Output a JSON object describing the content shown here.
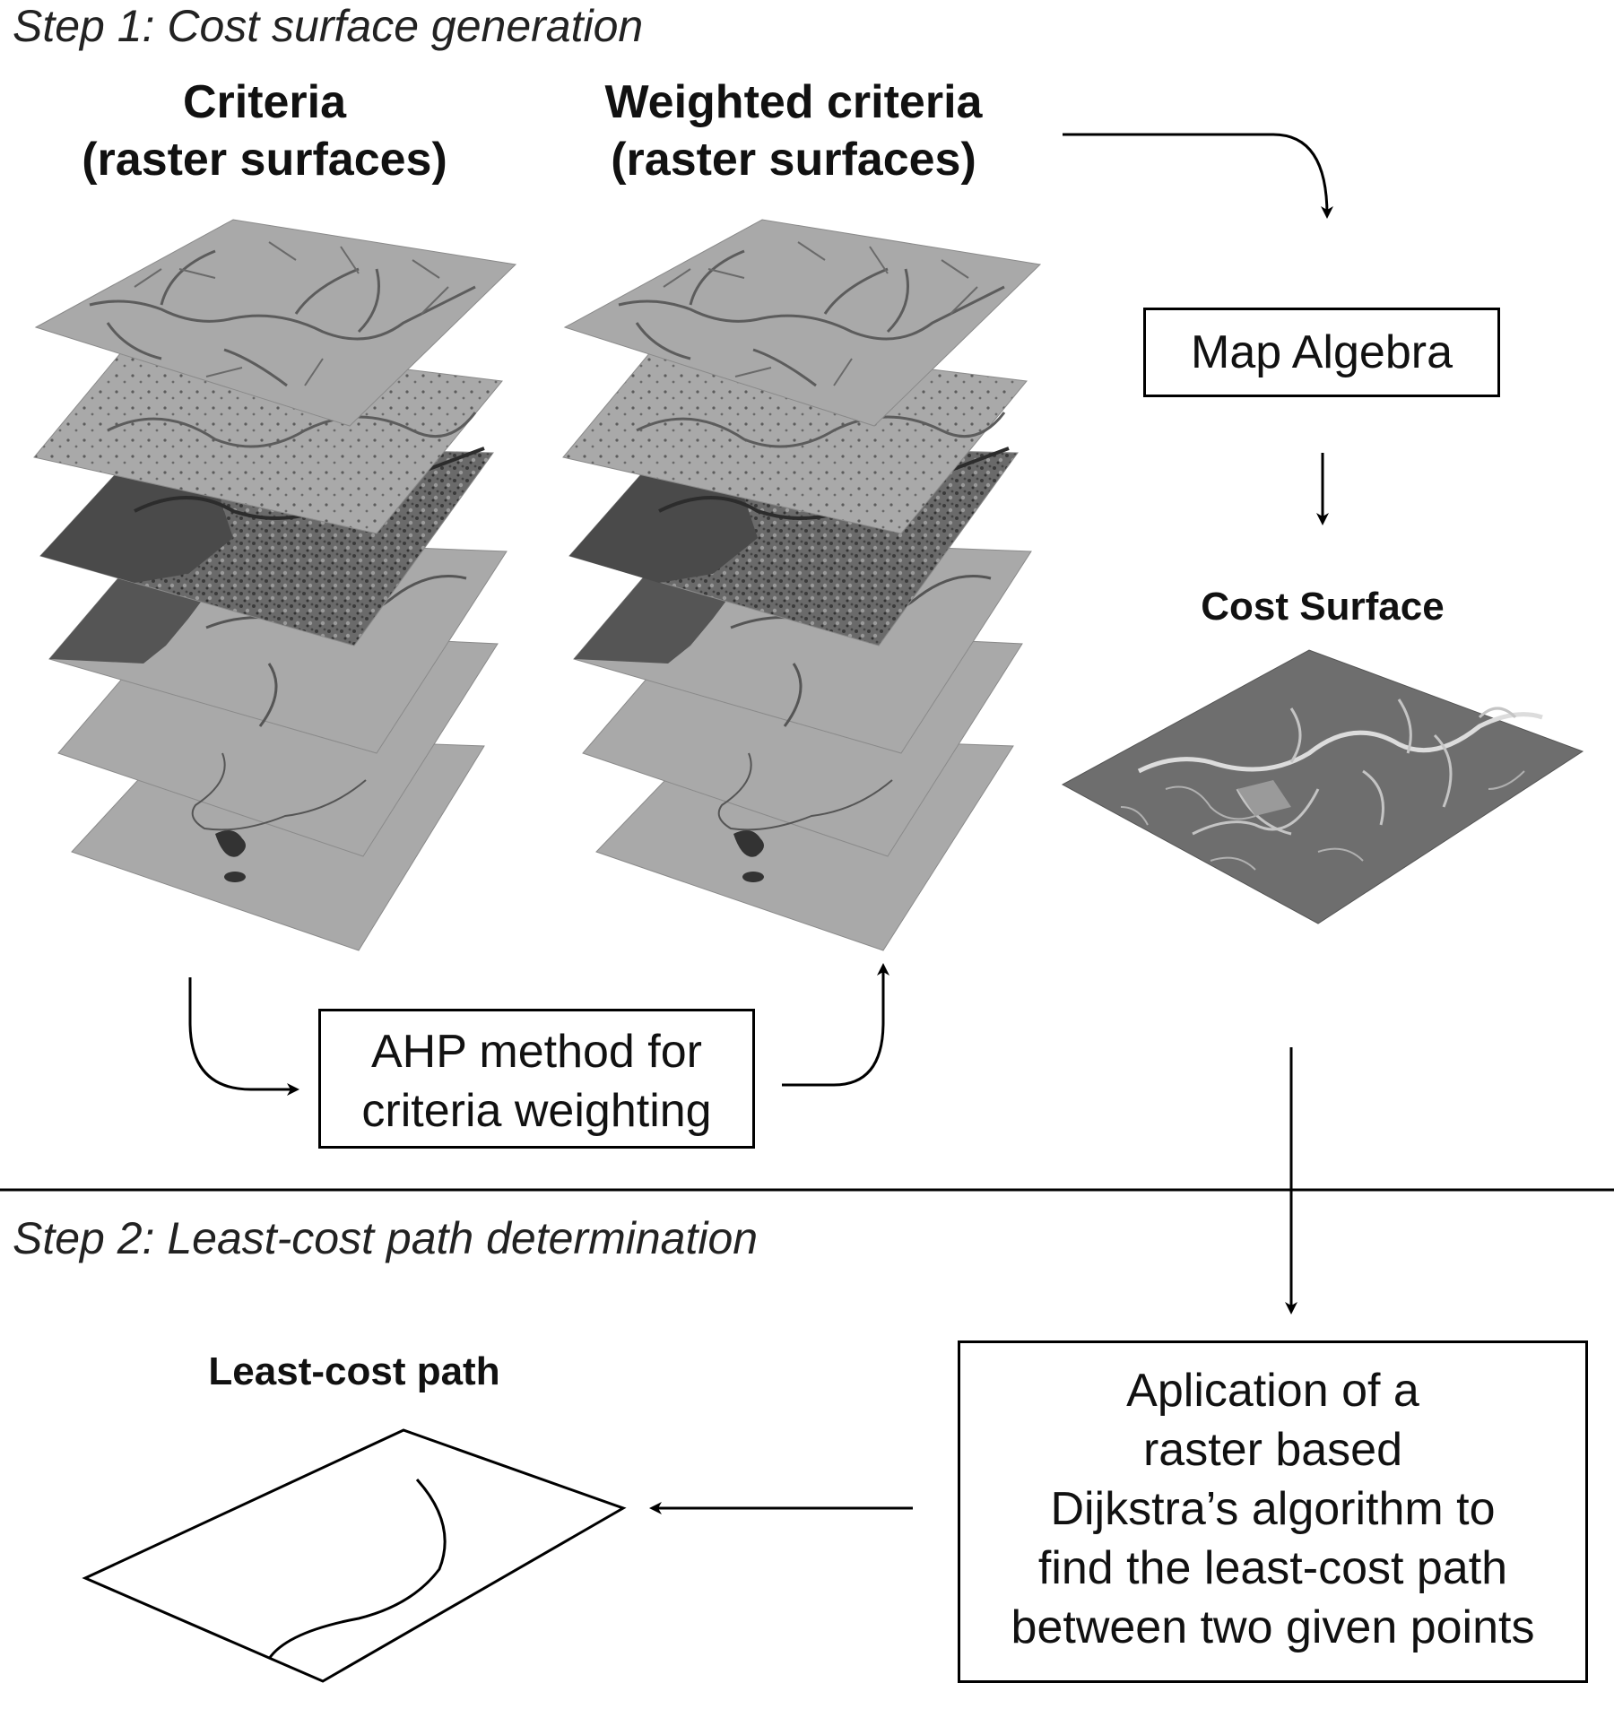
{
  "step1": {
    "title": "Step 1: Cost surface generation"
  },
  "criteria_column": {
    "line1": "Criteria",
    "line2": "(raster surfaces)"
  },
  "weighted_column": {
    "line1": "Weighted criteria",
    "line2": "(raster surfaces)"
  },
  "map_algebra": {
    "label": "Map Algebra"
  },
  "cost_surface": {
    "label": "Cost Surface"
  },
  "ahp_box": {
    "line1": "AHP method for",
    "line2": "criteria weighting"
  },
  "step2": {
    "title": "Step 2: Least-cost path determination"
  },
  "least_cost_path": {
    "label": "Least-cost path"
  },
  "dijkstra_box": {
    "line1": "Aplication of a",
    "line2": "raster based",
    "line3": "Dijkstra’s algorithm to",
    "line4": "find the least-cost path",
    "line5": "between two given points"
  },
  "colors": {
    "layer_light": "#a9a9a9",
    "layer_mid": "#8f8f8f",
    "layer_dark": "#555555",
    "river": "#5c5c5c",
    "cost_surface": "#6e6e6e",
    "cost_river": "#cfcfcf"
  }
}
